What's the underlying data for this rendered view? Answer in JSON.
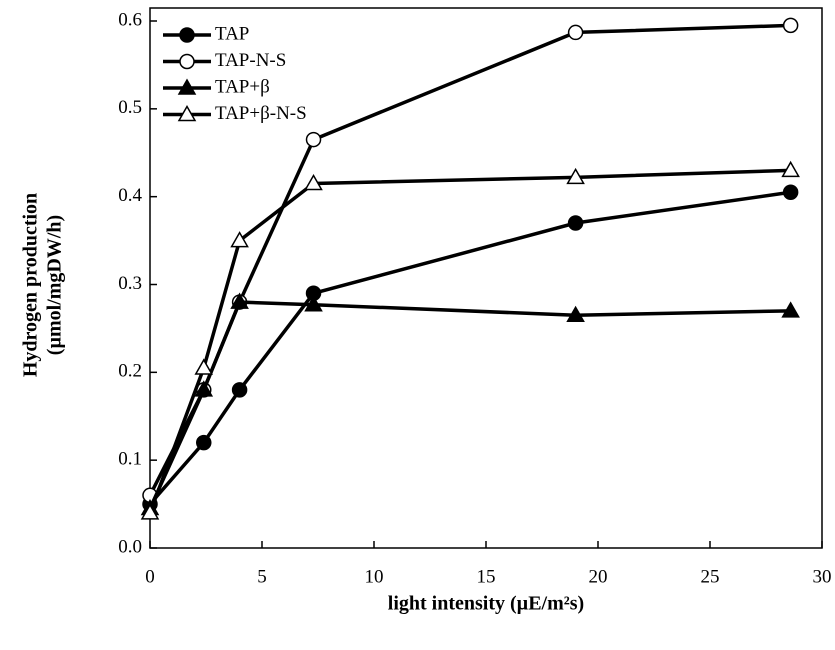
{
  "chart_data": {
    "type": "line",
    "x_label": "light intensity (µE/m²s)",
    "y_label": [
      "Hydrogen production",
      "(µmol/mgDW/h)"
    ],
    "x": [
      0,
      2.4,
      4,
      7.3,
      19,
      28.6
    ],
    "series": [
      {
        "name": "TAP",
        "color": "#000000",
        "marker": "circle",
        "filled": true,
        "values": [
          0.05,
          0.12,
          0.18,
          0.29,
          0.37,
          0.405
        ]
      },
      {
        "name": "TAP-N-S",
        "color": "#000000",
        "marker": "circle",
        "filled": false,
        "values": [
          0.06,
          0.18,
          0.28,
          0.465,
          0.587,
          0.595
        ]
      },
      {
        "name": "TAP+β",
        "color": "#000000",
        "marker": "triangle",
        "filled": true,
        "values": [
          0.045,
          0.18,
          0.28,
          0.277,
          0.265,
          0.27
        ]
      },
      {
        "name": "TAP+β-N-S",
        "color": "#000000",
        "marker": "triangle",
        "filled": false,
        "values": [
          0.04,
          0.205,
          0.35,
          0.415,
          0.422,
          0.43
        ]
      }
    ],
    "xlim": [
      0,
      30
    ],
    "xticks": [
      0,
      5,
      10,
      15,
      20,
      25,
      30
    ],
    "ylim": [
      0,
      0.6
    ],
    "yticks": [
      {
        "value": 0,
        "label": "0.0"
      },
      0.1,
      0.2,
      0.3,
      0.4,
      0.5,
      0.6
    ],
    "legend": "top-left"
  }
}
